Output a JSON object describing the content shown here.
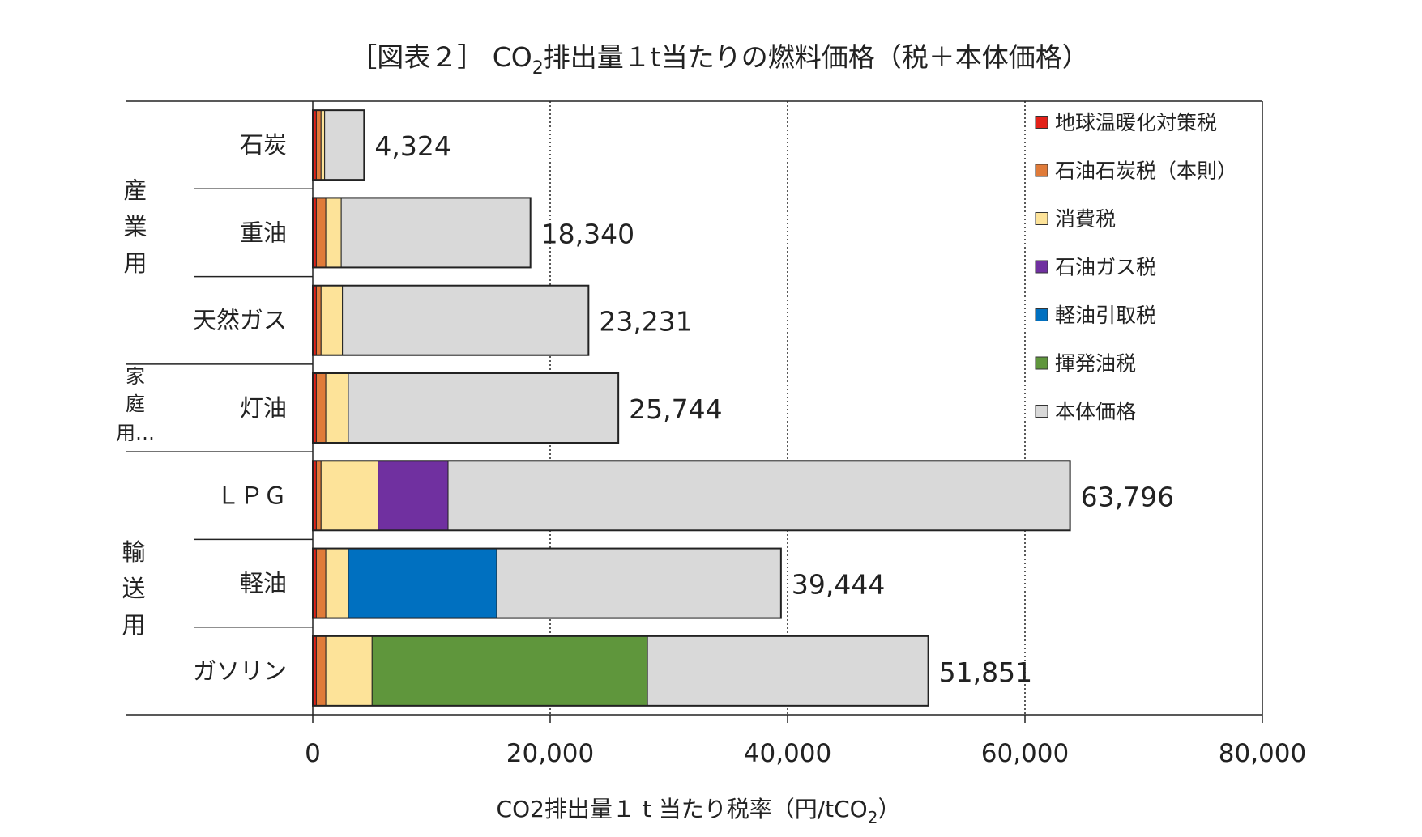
{
  "chart_data": {
    "type": "bar",
    "orientation": "horizontal",
    "stacked": true,
    "title": "［図表２］ CO₂排出量１t当たりの燃料価格（税＋本体価格）",
    "title_parts": [
      "［図表２］ CO",
      "2",
      "排出量１t当たりの燃料価格（税＋本体価格）"
    ],
    "xlabel": "CO2排出量１ t 当たり税率（円/tCO₂）",
    "xlabel_parts": [
      "CO2排出量１ t 当たり税率（円/tCO",
      "2",
      "）"
    ],
    "ylabel": "",
    "xlim": [
      0,
      80000
    ],
    "xticks": [
      0,
      20000,
      40000,
      60000,
      80000
    ],
    "xtick_labels": [
      "0",
      "20,000",
      "40,000",
      "60,000",
      "80,000"
    ],
    "grid": "vertical dotted",
    "legend_position": "top-right",
    "categories": [
      "石炭",
      "重油",
      "天然ガス",
      "灯油",
      "ＬＰＧ",
      "軽油",
      "ガソリン"
    ],
    "groups": [
      {
        "label": [
          "産",
          "業",
          "用"
        ]
      },
      {
        "label": [
          "家",
          "庭",
          "用…"
        ]
      },
      {
        "label": [
          "輸",
          "送",
          "用"
        ]
      }
    ],
    "totals": [
      4324,
      18340,
      23231,
      25744,
      63796,
      39444,
      51851
    ],
    "total_labels": [
      "4,324",
      "18,340",
      "23,231",
      "25,744",
      "63,796",
      "39,444",
      "51,851"
    ],
    "series": [
      {
        "name": "地球温暖化対策税",
        "color": "#e32119",
        "values": [
          300,
          300,
          300,
          300,
          300,
          300,
          300
        ]
      },
      {
        "name": "石油石炭税（本則）",
        "color": "#e07b39",
        "values": [
          400,
          800,
          400,
          800,
          400,
          800,
          800
        ]
      },
      {
        "name": "消費税",
        "color": "#fde399",
        "values": [
          300,
          1300,
          1800,
          1900,
          4800,
          1900,
          3900
        ]
      },
      {
        "name": "石油ガス税",
        "color": "#7030a0",
        "values": [
          0,
          0,
          0,
          0,
          5900,
          0,
          0
        ]
      },
      {
        "name": "軽油引取税",
        "color": "#0070c0",
        "values": [
          0,
          0,
          0,
          0,
          0,
          12500,
          0
        ]
      },
      {
        "name": "揮発油税",
        "color": "#5f963c",
        "values": [
          0,
          0,
          0,
          0,
          0,
          0,
          23200
        ]
      },
      {
        "name": "本体価格",
        "color": "#d9d9d9",
        "values": [
          3324,
          15940,
          20731,
          22744,
          52396,
          23944,
          23651
        ]
      }
    ]
  }
}
